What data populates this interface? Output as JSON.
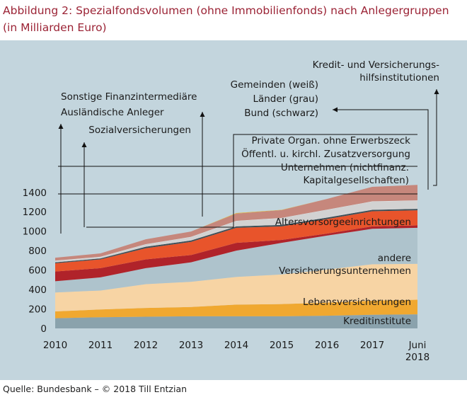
{
  "title": "Abbildung 2: Spezialfondsvolumen (ohne Immobilienfonds) nach Anlegergruppen (in Milliarden Euro)",
  "source": "Quelle: Bundesbank – © 2018 Till Entzian",
  "chart_data": {
    "type": "area",
    "stacked": true,
    "x": [
      "2010",
      "2011",
      "2012",
      "2013",
      "2014",
      "2015",
      "2016",
      "2017",
      "Juni 2018"
    ],
    "x_tick_labels": [
      [
        "2010"
      ],
      [
        "2011"
      ],
      [
        "2012"
      ],
      [
        "2013"
      ],
      [
        "2014"
      ],
      [
        "2015"
      ],
      [
        "2016"
      ],
      [
        "2017"
      ],
      [
        "Juni",
        "2018"
      ]
    ],
    "ylim": [
      0,
      1500
    ],
    "y_ticks": [
      0,
      200,
      400,
      600,
      800,
      1000,
      1200,
      1400
    ],
    "grid": false,
    "series": [
      {
        "name": "Kreditinstitute",
        "color": "#8aa2ac",
        "values": [
          105,
          115,
          120,
          125,
          125,
          125,
          130,
          140,
          145
        ]
      },
      {
        "name": "Lebensversicherungen",
        "color": "#f0a830",
        "values": [
          70,
          80,
          90,
          95,
          120,
          125,
          135,
          145,
          150
        ]
      },
      {
        "name": "andere Versicherungsunternehmen",
        "color": "#f7d4a4",
        "values": [
          195,
          195,
          245,
          260,
          285,
          305,
          340,
          375,
          370
        ]
      },
      {
        "name": "Altersvorsorgeeinrichtungen",
        "color": "#aec3cc",
        "values": [
          115,
          135,
          165,
          200,
          270,
          325,
          350,
          365,
          370
        ]
      },
      {
        "name": "Unternehmen (nichtfinanz. Kapitalgesellschaften)",
        "color": "#b0232a",
        "values": [
          100,
          95,
          90,
          75,
          80,
          30,
          20,
          25,
          25
        ]
      },
      {
        "name": "Private Organ. ohne Erwerbszweck",
        "color": "#e8542b",
        "values": [
          85,
          90,
          115,
          135,
          155,
          140,
          150,
          155,
          155
        ]
      },
      {
        "name": "Bund (schwarz)",
        "color": "#3e4f57",
        "values": [
          10,
          10,
          15,
          15,
          15,
          15,
          15,
          15,
          15
        ]
      },
      {
        "name": "Länder (grau)",
        "color": "#d2d2d2",
        "values": [
          15,
          15,
          25,
          35,
          55,
          70,
          80,
          85,
          85
        ]
      },
      {
        "name": "Gemeinden (weiß)",
        "color": "#f4f4f4",
        "values": [
          2,
          2,
          2,
          2,
          2,
          2,
          2,
          2,
          2
        ]
      },
      {
        "name": "Öffentl. u. kirchl. Zusatzversorgung",
        "color": "#c6877c",
        "values": [
          30,
          35,
          50,
          55,
          75,
          80,
          110,
          150,
          160
        ]
      },
      {
        "name": "Sozialversicherungen",
        "color": "#c83c3c",
        "values": [
          0,
          0,
          0,
          0,
          0,
          0,
          0,
          0,
          0
        ]
      },
      {
        "name": "Ausländische Anleger",
        "color": "#e2b23a",
        "values": [
          0,
          0,
          0,
          0,
          5,
          3,
          0,
          0,
          0
        ]
      },
      {
        "name": "Sonstige Finanzintermediäre",
        "color": "#e0cda8",
        "values": [
          0,
          0,
          0,
          0,
          0,
          0,
          0,
          0,
          0
        ]
      },
      {
        "name": "Kredit- und Versicherungshilfsinstitutionen",
        "color": "#3e4f57",
        "values": [
          0,
          0,
          0,
          0,
          0,
          0,
          0,
          0,
          0
        ]
      }
    ],
    "in_chart_labels": [
      {
        "lines": [
          "Kreditinstitute"
        ]
      },
      {
        "lines": [
          "Lebensversicherungen"
        ]
      },
      {
        "lines": [
          "andere",
          "Versicherungsunternehmen"
        ]
      },
      {
        "lines": [
          "Altersvorsorgeeinrichtungen"
        ]
      },
      {
        "lines": [
          "Unternehmen (nichtfinanz.",
          "Kapitalgesellschaften)"
        ]
      },
      {
        "lines": [
          "Private Organ. ohne Erwerbszeck"
        ]
      },
      {
        "lines": [
          "Öffentl. u. kirchl. Zusatzversorgung"
        ]
      },
      {
        "lines": [
          "Gemeinden (weiß)",
          "Länder (grau)",
          "Bund (schwarz)"
        ]
      },
      {
        "lines": [
          "Sozialversicherungen"
        ]
      },
      {
        "lines": [
          "Sonstige Finanzintermediäre",
          "Ausländische Anleger"
        ]
      },
      {
        "lines": [
          "Kredit- und Versicherungs-",
          "hilfsinstitutionen"
        ]
      }
    ]
  }
}
